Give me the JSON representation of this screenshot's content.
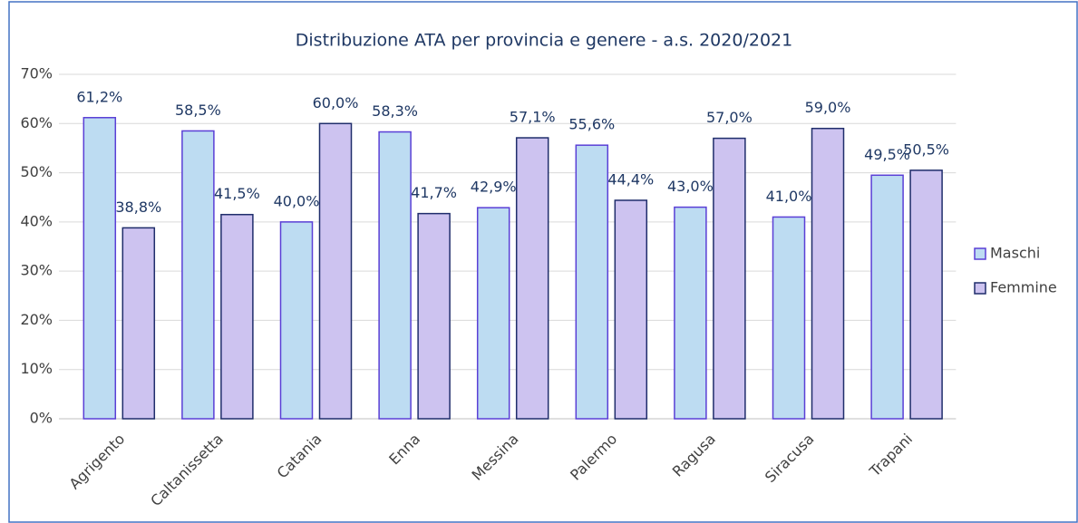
{
  "chart_data": {
    "type": "bar",
    "title": "Distribuzione ATA per provincia e genere - a.s. 2020/2021",
    "categories": [
      "Agrigento",
      "Caltanissetta",
      "Catania",
      "Enna",
      "Messina",
      "Palermo",
      "Ragusa",
      "Siracusa",
      "Trapani"
    ],
    "series": [
      {
        "name": "Maschi",
        "color": "#bddcf2",
        "values": [
          61.2,
          58.5,
          40.0,
          58.3,
          42.9,
          55.6,
          43.0,
          41.0,
          49.5
        ],
        "value_labels": [
          "61,2%",
          "58,5%",
          "40,0%",
          "58,3%",
          "42,9%",
          "55,6%",
          "43,0%",
          "41,0%",
          "49,5%"
        ]
      },
      {
        "name": "Femmine",
        "color": "#cdc3f0",
        "values": [
          38.8,
          41.5,
          60.0,
          41.7,
          57.1,
          44.4,
          57.0,
          59.0,
          50.5
        ],
        "value_labels": [
          "38,8%",
          "41,5%",
          "60,0%",
          "41,7%",
          "57,1%",
          "44,4%",
          "57,0%",
          "59,0%",
          "50,5%"
        ]
      }
    ],
    "ylim": [
      0,
      70
    ],
    "yticks": [
      {
        "value": 0,
        "label": "0%"
      },
      {
        "value": 10,
        "label": "10%"
      },
      {
        "value": 20,
        "label": "20%"
      },
      {
        "value": 30,
        "label": "30%"
      },
      {
        "value": 40,
        "label": "40%"
      },
      {
        "value": 50,
        "label": "50%"
      },
      {
        "value": 60,
        "label": "60%"
      },
      {
        "value": 70,
        "label": "70%"
      }
    ],
    "grid": true,
    "legend": "right"
  }
}
